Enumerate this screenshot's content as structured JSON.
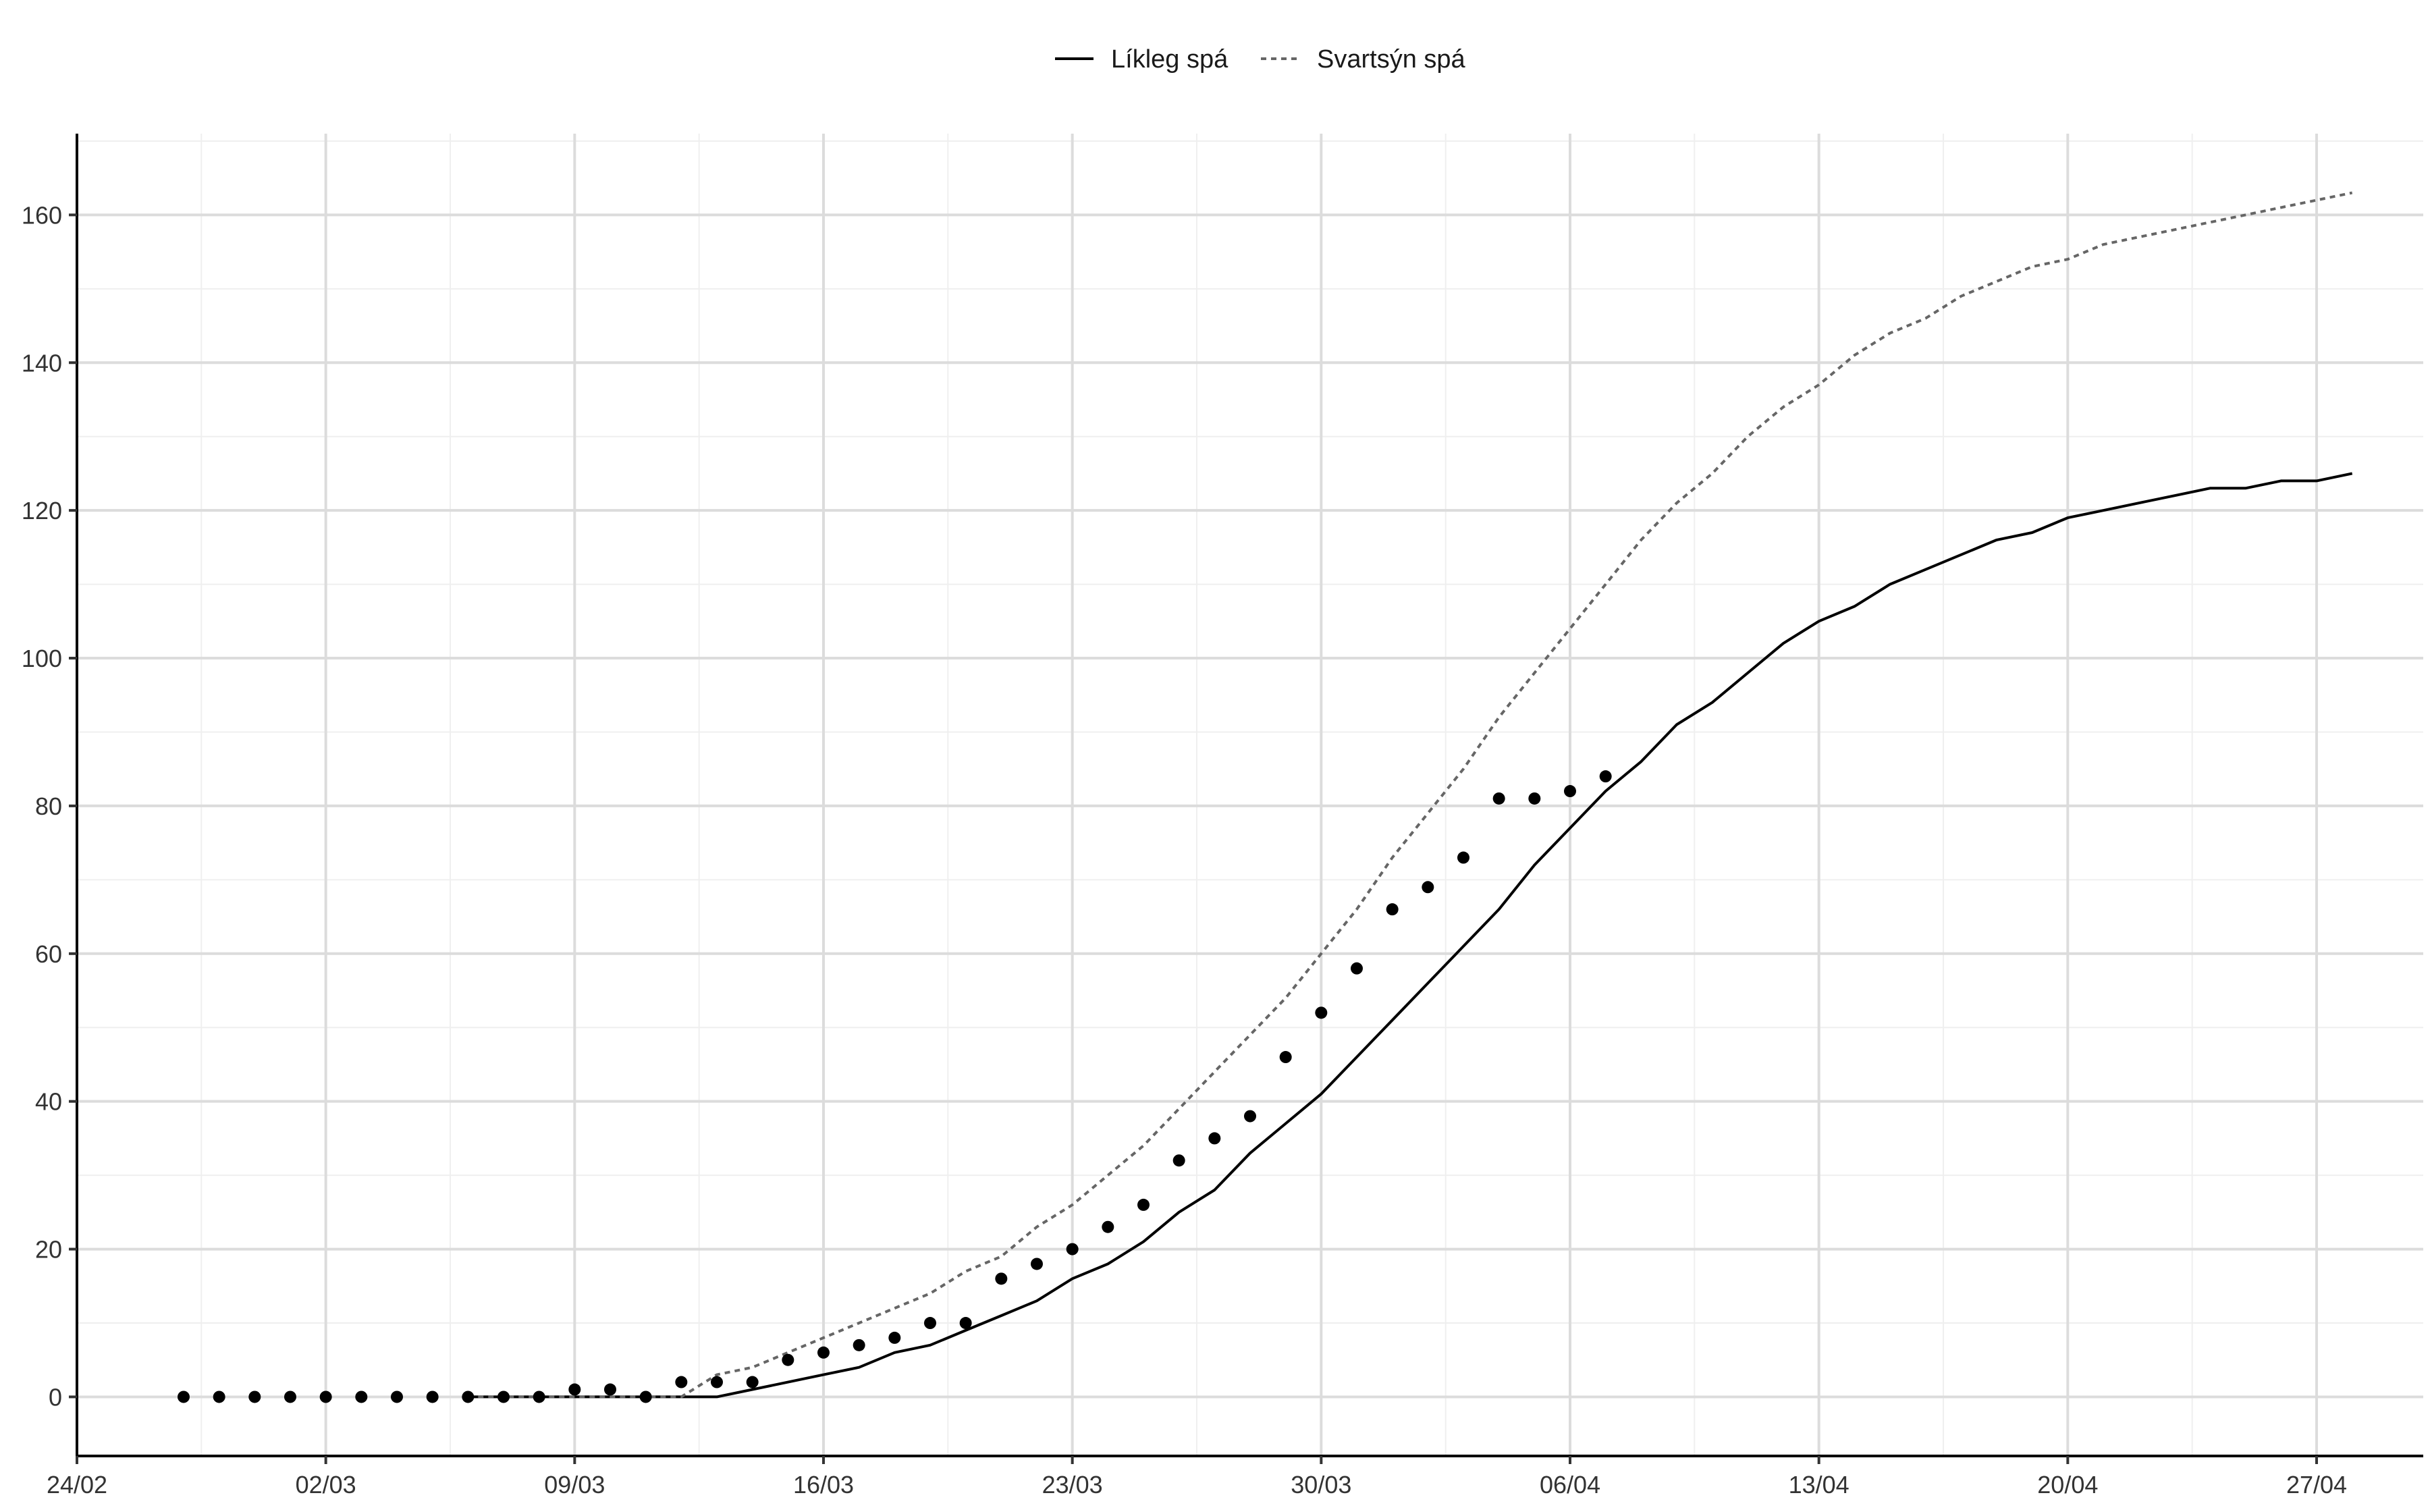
{
  "chart_data": {
    "type": "line",
    "title": "",
    "xlabel": "",
    "ylabel": "",
    "legend_position": "top-center",
    "grid": true,
    "x_axis": {
      "type": "date",
      "range": [
        "2020-02-24",
        "2020-04-30"
      ],
      "ticks": [
        {
          "date": "2020-02-24",
          "label": "24/02"
        },
        {
          "date": "2020-03-02",
          "label": "02/03"
        },
        {
          "date": "2020-03-09",
          "label": "09/03"
        },
        {
          "date": "2020-03-16",
          "label": "16/03"
        },
        {
          "date": "2020-03-23",
          "label": "23/03"
        },
        {
          "date": "2020-03-30",
          "label": "30/03"
        },
        {
          "date": "2020-04-06",
          "label": "06/04"
        },
        {
          "date": "2020-04-13",
          "label": "13/04"
        },
        {
          "date": "2020-04-20",
          "label": "20/04"
        },
        {
          "date": "2020-04-27",
          "label": "27/04"
        }
      ]
    },
    "y_axis": {
      "range": [
        -8,
        171
      ],
      "ticks": [
        0,
        20,
        40,
        60,
        80,
        100,
        120,
        140,
        160
      ]
    },
    "series": [
      {
        "name": "Líkleg spá",
        "style": "solid",
        "color": "#000000",
        "start_date": "2020-03-06",
        "values": [
          0,
          0,
          0,
          0,
          0,
          0,
          0,
          0,
          1,
          2,
          3,
          4,
          6,
          7,
          9,
          11,
          13,
          16,
          18,
          21,
          25,
          28,
          33,
          37,
          41,
          46,
          51,
          56,
          61,
          66,
          72,
          77,
          82,
          86,
          91,
          94,
          98,
          102,
          105,
          107,
          110,
          112,
          114,
          116,
          117,
          119,
          120,
          121,
          122,
          123,
          123,
          124,
          124,
          125
        ]
      },
      {
        "name": "Svartsýn spá",
        "style": "dashed",
        "color": "#666666",
        "start_date": "2020-03-06",
        "values": [
          0,
          0,
          0,
          0,
          0,
          0,
          0,
          3,
          4,
          6,
          8,
          10,
          12,
          14,
          17,
          19,
          23,
          26,
          30,
          34,
          39,
          44,
          49,
          54,
          60,
          66,
          73,
          79,
          85,
          92,
          98,
          104,
          110,
          116,
          121,
          125,
          130,
          134,
          137,
          141,
          144,
          146,
          149,
          151,
          153,
          154,
          156,
          157,
          158,
          159,
          160,
          161,
          162,
          163
        ]
      },
      {
        "name": "",
        "style": "points",
        "color": "#000000",
        "start_date": "2020-02-27",
        "values": [
          0,
          0,
          0,
          0,
          0,
          0,
          0,
          0,
          0,
          0,
          0,
          1,
          1,
          0,
          2,
          2,
          2,
          5,
          6,
          7,
          8,
          10,
          10,
          16,
          18,
          20,
          23,
          26,
          32,
          35,
          38,
          46,
          52,
          58,
          66,
          69,
          73,
          81,
          81,
          82,
          84
        ]
      }
    ]
  }
}
